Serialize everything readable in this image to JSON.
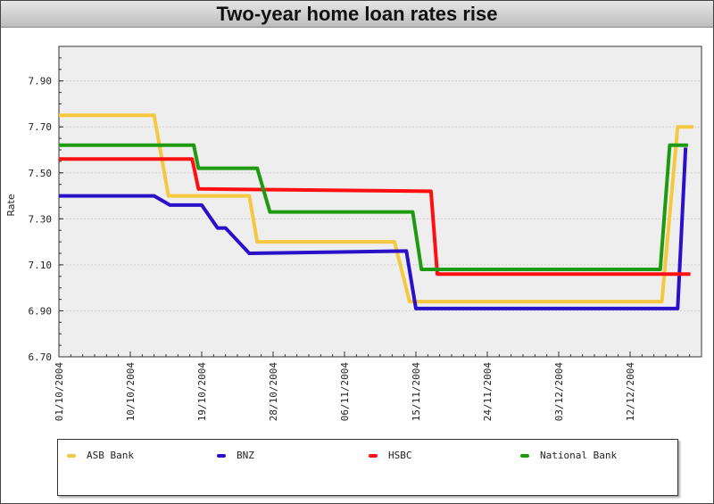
{
  "chart_data": {
    "type": "line",
    "title": "Two-year home loan rates rise",
    "xlabel": "",
    "ylabel": "Rate",
    "x_unit": "days since 01/10/2004",
    "xlim": [
      0,
      81
    ],
    "ylim": [
      6.7,
      8.05
    ],
    "yticks": [
      "6.70",
      "6.90",
      "7.10",
      "7.30",
      "7.50",
      "7.70",
      "7.90"
    ],
    "ytick_values": [
      6.7,
      6.9,
      7.1,
      7.3,
      7.5,
      7.7,
      7.9
    ],
    "xticks": [
      "01/10/2004",
      "10/10/2004",
      "19/10/2004",
      "28/10/2004",
      "06/11/2004",
      "15/11/2004",
      "24/11/2004",
      "03/12/2004",
      "12/12/2004"
    ],
    "xtick_values": [
      0,
      9,
      18,
      27,
      36,
      45,
      54,
      63,
      72
    ],
    "grid": true,
    "legend_position": "bottom",
    "series": [
      {
        "name": "ASB Bank",
        "color": "#f5c842",
        "points": [
          [
            0,
            7.75
          ],
          [
            12,
            7.75
          ],
          [
            13.8,
            7.4
          ],
          [
            24,
            7.4
          ],
          [
            25,
            7.2
          ],
          [
            42.3,
            7.2
          ],
          [
            44.2,
            6.94
          ],
          [
            76,
            6.94
          ],
          [
            78,
            7.7
          ],
          [
            80,
            7.7
          ]
        ]
      },
      {
        "name": "BNZ",
        "color": "#2a10c8",
        "points": [
          [
            0,
            7.4
          ],
          [
            12,
            7.4
          ],
          [
            14,
            7.36
          ],
          [
            18,
            7.36
          ],
          [
            20,
            7.26
          ],
          [
            21,
            7.26
          ],
          [
            24,
            7.15
          ],
          [
            43.8,
            7.16
          ],
          [
            45,
            6.91
          ],
          [
            78,
            6.91
          ],
          [
            79,
            7.61
          ]
        ]
      },
      {
        "name": "HSBC",
        "color": "#ff1010",
        "points": [
          [
            0,
            7.56
          ],
          [
            16.8,
            7.56
          ],
          [
            17.6,
            7.43
          ],
          [
            46.9,
            7.42
          ],
          [
            47.7,
            7.06
          ],
          [
            79.6,
            7.06
          ]
        ]
      },
      {
        "name": "National Bank",
        "color": "#1e9a10",
        "points": [
          [
            0,
            7.62
          ],
          [
            17,
            7.62
          ],
          [
            17.6,
            7.52
          ],
          [
            25,
            7.52
          ],
          [
            26.6,
            7.33
          ],
          [
            44.6,
            7.33
          ],
          [
            45.7,
            7.08
          ],
          [
            75.8,
            7.08
          ],
          [
            77,
            7.62
          ],
          [
            79.3,
            7.62
          ]
        ]
      }
    ]
  }
}
